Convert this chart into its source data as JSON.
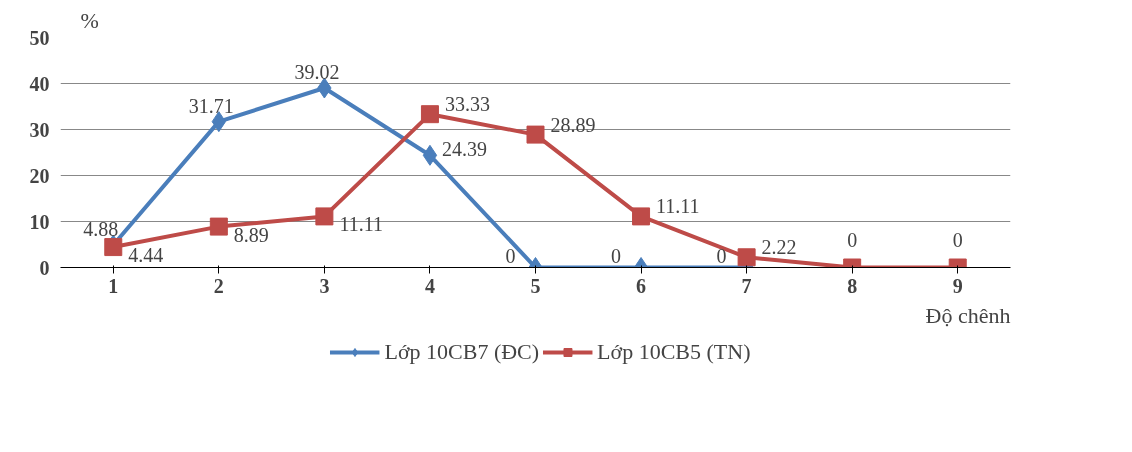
{
  "chart_data": {
    "type": "line",
    "ylabel": "%",
    "xlabel": "Độ chênh",
    "categories": [
      "1",
      "2",
      "3",
      "4",
      "5",
      "6",
      "7",
      "8",
      "9"
    ],
    "ylim": [
      0,
      50
    ],
    "yticks": [
      0,
      10,
      20,
      30,
      40,
      50
    ],
    "grid": "y",
    "legend": "bottom",
    "line_style": "solid",
    "series": [
      {
        "name": "Lớp 10CB7 (ĐC)",
        "color": "#4a7ebb",
        "marker": "diamond",
        "values": [
          4.88,
          31.71,
          39.02,
          24.39,
          0,
          0,
          0,
          null,
          null
        ],
        "value_labels": [
          "4.88",
          "31.71",
          "39.02",
          "24.39",
          "0",
          "0",
          "0",
          null,
          null
        ]
      },
      {
        "name": "Lớp 10CB5 (TN)",
        "color": "#be4b48",
        "marker": "square",
        "values": [
          4.44,
          8.89,
          11.11,
          33.33,
          28.89,
          11.11,
          2.22,
          0,
          0
        ],
        "value_labels": [
          "4.44",
          "8.89",
          "11.11",
          "33.33",
          "28.89",
          "11.11",
          "2.22",
          "0",
          "0"
        ]
      }
    ]
  }
}
